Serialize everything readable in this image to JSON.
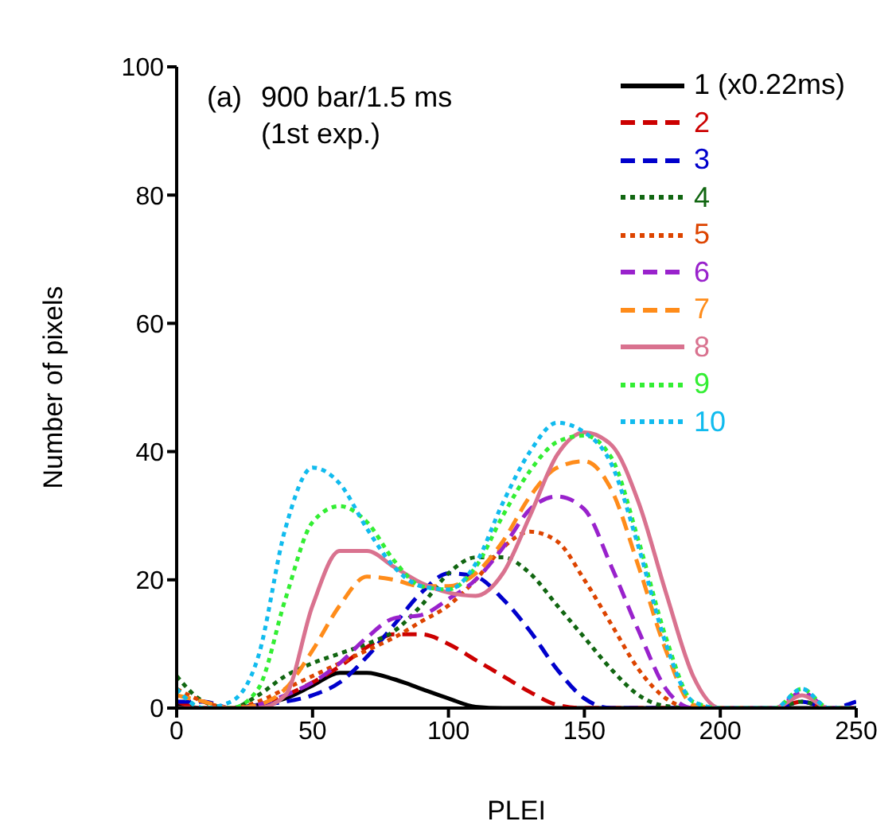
{
  "chart_data": {
    "type": "line",
    "xlabel": "PLEI",
    "ylabel": "Number of pixels",
    "annotations": [
      "(a)",
      "900 bar/1.5 ms",
      "(1st exp.)"
    ],
    "x": [
      0,
      10,
      20,
      30,
      40,
      50,
      60,
      70,
      80,
      90,
      100,
      110,
      120,
      130,
      140,
      150,
      160,
      170,
      180,
      190,
      200,
      210,
      220,
      230,
      240,
      250
    ],
    "xlim": [
      0,
      250
    ],
    "xticks": [
      0,
      50,
      100,
      150,
      200,
      250
    ],
    "ylim": [
      0,
      100
    ],
    "yticks": [
      0,
      20,
      40,
      60,
      80,
      100
    ],
    "legend": "top right",
    "marker": "none",
    "series": [
      {
        "name": "1 (x0.22ms)",
        "color": "#000000",
        "line_style": "solid",
        "values": [
          0.5,
          0,
          0,
          0.5,
          1.5,
          3.5,
          5.5,
          5.5,
          4.5,
          3,
          1.5,
          0.2,
          0,
          0,
          0,
          0,
          0,
          0,
          0,
          0,
          0,
          0,
          0,
          0,
          0,
          0
        ]
      },
      {
        "name": "2",
        "color": "#cc0000",
        "line_style": "dashed",
        "values": [
          1,
          0,
          0,
          0.5,
          2,
          4,
          6.5,
          9.5,
          11.5,
          11.5,
          10,
          7.5,
          5,
          2.5,
          0.5,
          0,
          0,
          0,
          0,
          0,
          0,
          0,
          0,
          1,
          0,
          0
        ]
      },
      {
        "name": "3",
        "color": "#0000cc",
        "line_style": "dashed",
        "values": [
          1,
          1,
          0,
          0.5,
          1,
          2,
          4,
          8,
          13,
          18,
          21,
          20.5,
          17,
          12,
          6,
          1.5,
          0,
          0,
          0,
          0,
          0,
          0,
          0,
          1,
          0,
          1
        ]
      },
      {
        "name": "4",
        "color": "#116611",
        "line_style": "dotted",
        "values": [
          5,
          1,
          0,
          2,
          5,
          7,
          8.5,
          10,
          12,
          16,
          21,
          23.5,
          23.5,
          21,
          16,
          11,
          6,
          2,
          0.3,
          0,
          0,
          0,
          0,
          1,
          0,
          0
        ]
      },
      {
        "name": "5",
        "color": "#dd4400",
        "line_style": "dotted",
        "values": [
          3,
          1,
          0,
          1,
          3,
          5,
          7,
          9,
          11,
          13.5,
          16,
          20,
          25,
          27.5,
          26,
          20,
          13,
          6,
          1.5,
          0,
          0,
          0,
          null,
          null,
          null,
          null
        ]
      },
      {
        "name": "6",
        "color": "#9922cc",
        "line_style": "dashed",
        "values": [
          null,
          null,
          null,
          0.5,
          2,
          4,
          7,
          11,
          14,
          14.5,
          17,
          20,
          25,
          31,
          33,
          31,
          22,
          12,
          3,
          0,
          0,
          0,
          0,
          2.5,
          0,
          0
        ]
      },
      {
        "name": "7",
        "color": "#ff8c1a",
        "line_style": "dashed",
        "values": [
          2,
          1,
          0,
          0.5,
          3,
          9,
          16,
          20.5,
          20,
          19,
          19,
          21,
          26,
          33,
          37.5,
          38.5,
          34,
          22,
          9,
          0.5,
          0,
          0,
          null,
          null,
          null,
          null
        ]
      },
      {
        "name": "8",
        "color": "#d9728f",
        "line_style": "solid",
        "values": [
          0,
          0,
          0,
          0,
          2,
          16,
          24.5,
          24.5,
          22,
          19.5,
          18,
          17.5,
          21,
          30,
          39.5,
          43,
          41,
          32,
          18,
          5,
          0,
          0,
          0,
          2,
          0,
          0
        ]
      },
      {
        "name": "9",
        "color": "#33ee33",
        "line_style": "dotted",
        "values": [
          3,
          0,
          0,
          3,
          17,
          29,
          31.5,
          29,
          23,
          19,
          18.5,
          22,
          30,
          37,
          41.5,
          42.5,
          39,
          26,
          11,
          1,
          0,
          0,
          0,
          3,
          0,
          0
        ]
      },
      {
        "name": "10",
        "color": "#11bbee",
        "line_style": "dotted",
        "values": [
          3,
          0,
          1,
          8,
          28,
          37.5,
          35,
          28,
          22,
          19,
          18.5,
          22.5,
          32,
          40,
          44.5,
          43,
          38,
          25,
          10,
          1,
          0,
          0,
          0,
          3,
          0,
          0
        ]
      }
    ]
  }
}
